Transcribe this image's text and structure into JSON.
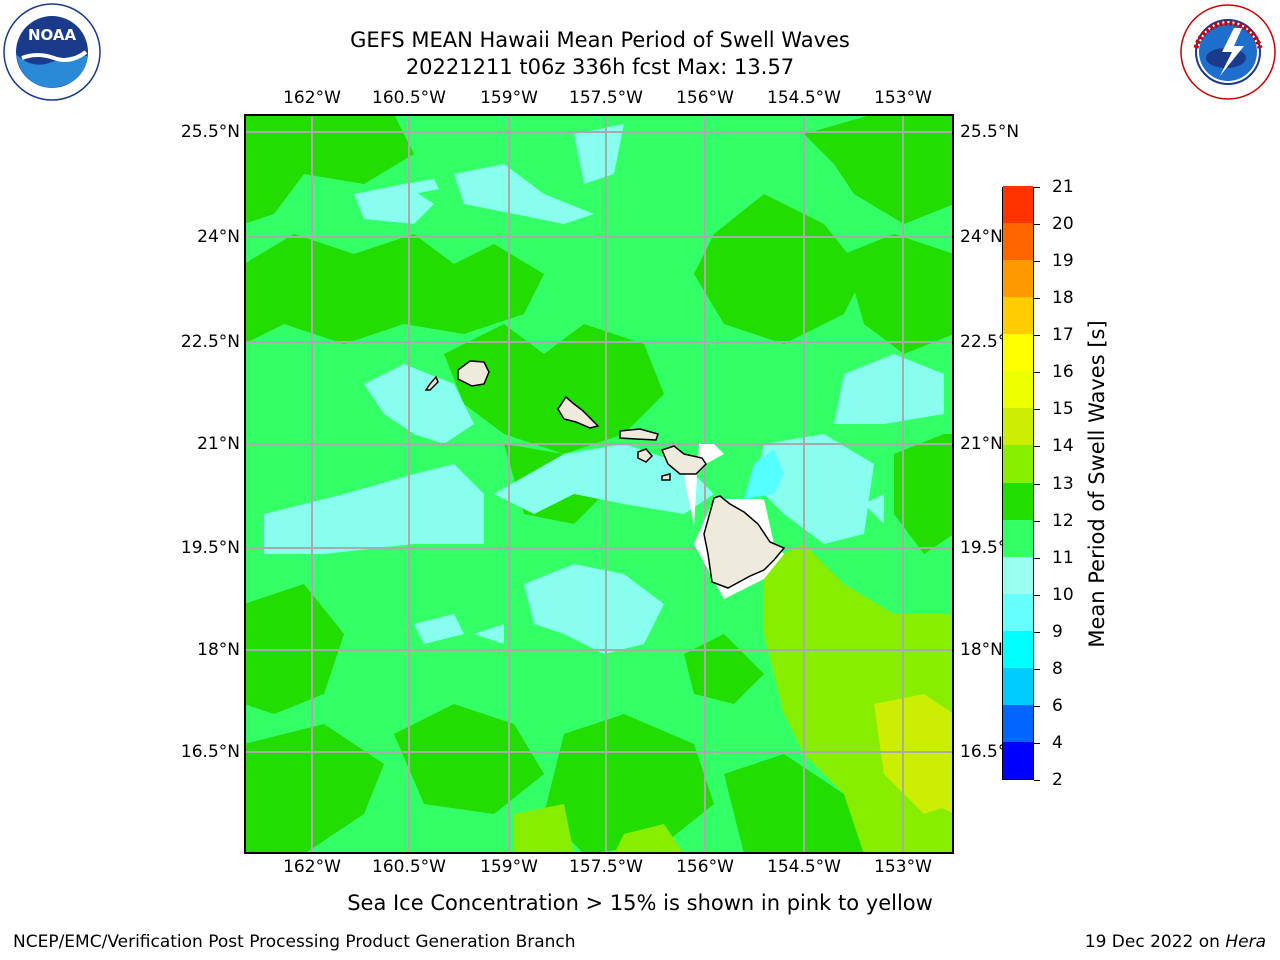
{
  "title": {
    "line1": "GEFS MEAN Hawaii Mean Period of Swell Waves",
    "line2": "20221211 t06z 336h fcst   Max: 13.57"
  },
  "logos": {
    "left": {
      "icon": "noaa-logo",
      "text": "NOAA",
      "ring_text": "NATIONAL OCEANIC AND ATMOSPHERIC ADMINISTRATION · U.S. DEPARTMENT OF COMMERCE"
    },
    "right": {
      "icon": "nws-logo",
      "ring_text": "NATIONAL WEATHER SERVICE"
    }
  },
  "map": {
    "lon_ticks": [
      "162°W",
      "160.5°W",
      "159°W",
      "157.5°W",
      "156°W",
      "154.5°W",
      "153°W"
    ],
    "lat_ticks": [
      "25.5°N",
      "24°N",
      "22.5°N",
      "21°N",
      "19.5°N",
      "18°N",
      "16.5°N"
    ],
    "right_lat_ticks": [
      "25.5°N",
      "24°N",
      "22.5°N",
      "21°N",
      "19.5°N",
      "18°N",
      "16.5°N"
    ],
    "islands": [
      "Niihau",
      "Kauai",
      "Oahu",
      "Molokai",
      "Lanai",
      "Kahoolawe",
      "Maui",
      "Hawaii"
    ],
    "colors": {
      "c10_11": "#33ff66",
      "c11_12": "#22dd00",
      "c12_13": "#88ee00",
      "c13_14": "#ccee00",
      "c9_10": "#88ffee",
      "c8_9": "#55ffff",
      "land": "#eeeadc",
      "grid": "#aaaaaa"
    }
  },
  "colorbar": {
    "title": "Mean Period of Swell Waves [s]",
    "labels": [
      "2",
      "4",
      "6",
      "8",
      "9",
      "10",
      "11",
      "12",
      "13",
      "14",
      "15",
      "16",
      "17",
      "18",
      "19",
      "20",
      "21"
    ],
    "colors": [
      "#0000ff",
      "#0066ff",
      "#00ccff",
      "#00ffff",
      "#66ffff",
      "#99ffee",
      "#33ff66",
      "#22dd00",
      "#88ee00",
      "#ccee00",
      "#eeff00",
      "#ffff00",
      "#ffcc00",
      "#ff9900",
      "#ff6600",
      "#ff3300",
      "#ff0000"
    ]
  },
  "notes": {
    "sea_ice": "Sea Ice Concentration > 15% is shown in pink to yellow",
    "footer_left": "NCEP/EMC/Verification Post Processing Product Generation Branch",
    "footer_date": "19 Dec 2022 on ",
    "footer_machine": "Hera"
  }
}
